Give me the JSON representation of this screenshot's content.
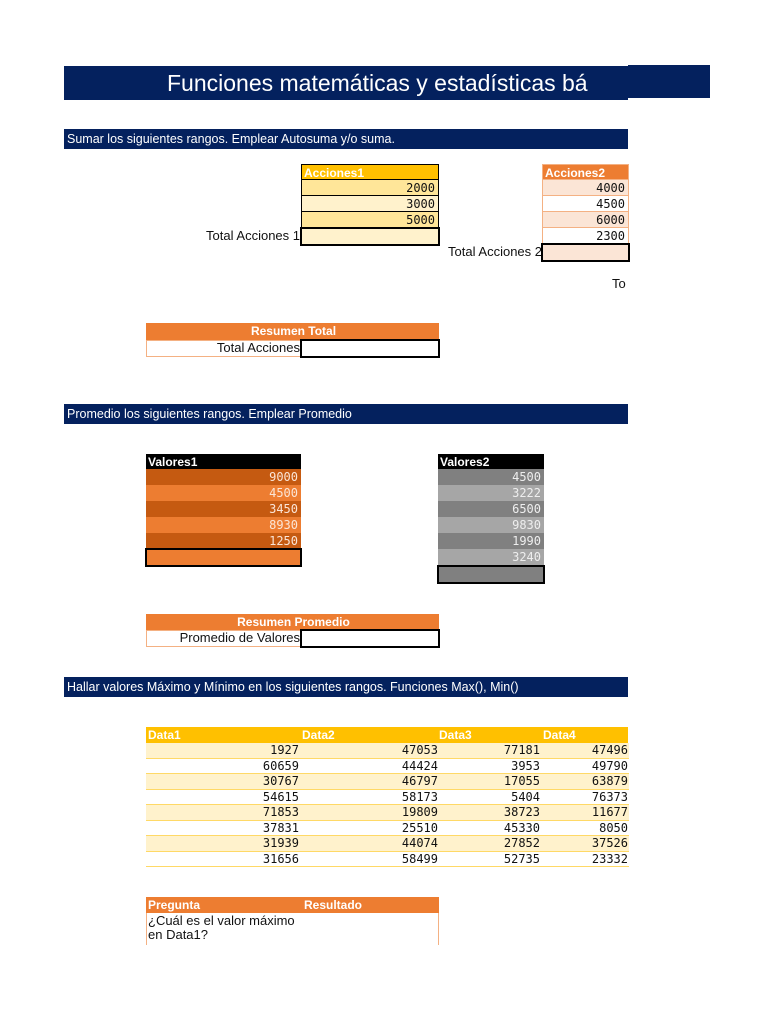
{
  "title": "Funciones matemáticas y estadísticas bá",
  "sections": {
    "sum": "Sumar los siguientes rangos. Emplear Autosuma y/o suma.",
    "avg": "Promedio los siguientes rangos. Emplear Promedio",
    "maxmin": "Hallar valores Máximo y Mínimo en los siguientes rangos. Funciones Max(), Min()"
  },
  "acciones1": {
    "header": "Acciones1",
    "values": [
      "2000",
      "3000",
      "5000"
    ],
    "total_label": "Total Acciones 1",
    "total": ""
  },
  "acciones2": {
    "header": "Acciones2",
    "values": [
      "4000",
      "4500",
      "6000",
      "2300"
    ],
    "total_label": "Total Acciones 2",
    "total": ""
  },
  "clipped_label": "To",
  "resumen_total": {
    "header": "Resumen Total",
    "label": "Total Acciones",
    "value": ""
  },
  "valores1": {
    "header": "Valores1",
    "values": [
      "9000",
      "4500",
      "3450",
      "8930",
      "1250"
    ],
    "total": ""
  },
  "valores2": {
    "header": "Valores2",
    "values": [
      "4500",
      "3222",
      "6500",
      "9830",
      "1990",
      "3240"
    ],
    "total": ""
  },
  "resumen_promedio": {
    "header": "Resumen Promedio",
    "label": "Promedio de Valores",
    "value": ""
  },
  "data_table": {
    "headers": [
      "Data1",
      "Data2",
      "Data3",
      "Data4"
    ],
    "rows": [
      [
        "1927",
        "47053",
        "77181",
        "47496"
      ],
      [
        "60659",
        "44424",
        "3953",
        "49790"
      ],
      [
        "30767",
        "46797",
        "17055",
        "63879"
      ],
      [
        "54615",
        "58173",
        "5404",
        "76373"
      ],
      [
        "71853",
        "19809",
        "38723",
        "11677"
      ],
      [
        "37831",
        "25510",
        "45330",
        "8050"
      ],
      [
        "31939",
        "44074",
        "27852",
        "37526"
      ],
      [
        "31656",
        "58499",
        "52735",
        "23332"
      ]
    ]
  },
  "pregunta": {
    "headers": [
      "Pregunta",
      "Resultado"
    ],
    "question": "¿Cuál es el valor máximo en Data1?",
    "result": ""
  },
  "colors": {
    "navy": "#04215e",
    "gold": "#ffc000",
    "orange": "#ed7d31",
    "dark_orange": "#c55a11",
    "gray": "#808080",
    "light_gray": "#a6a6a6"
  }
}
